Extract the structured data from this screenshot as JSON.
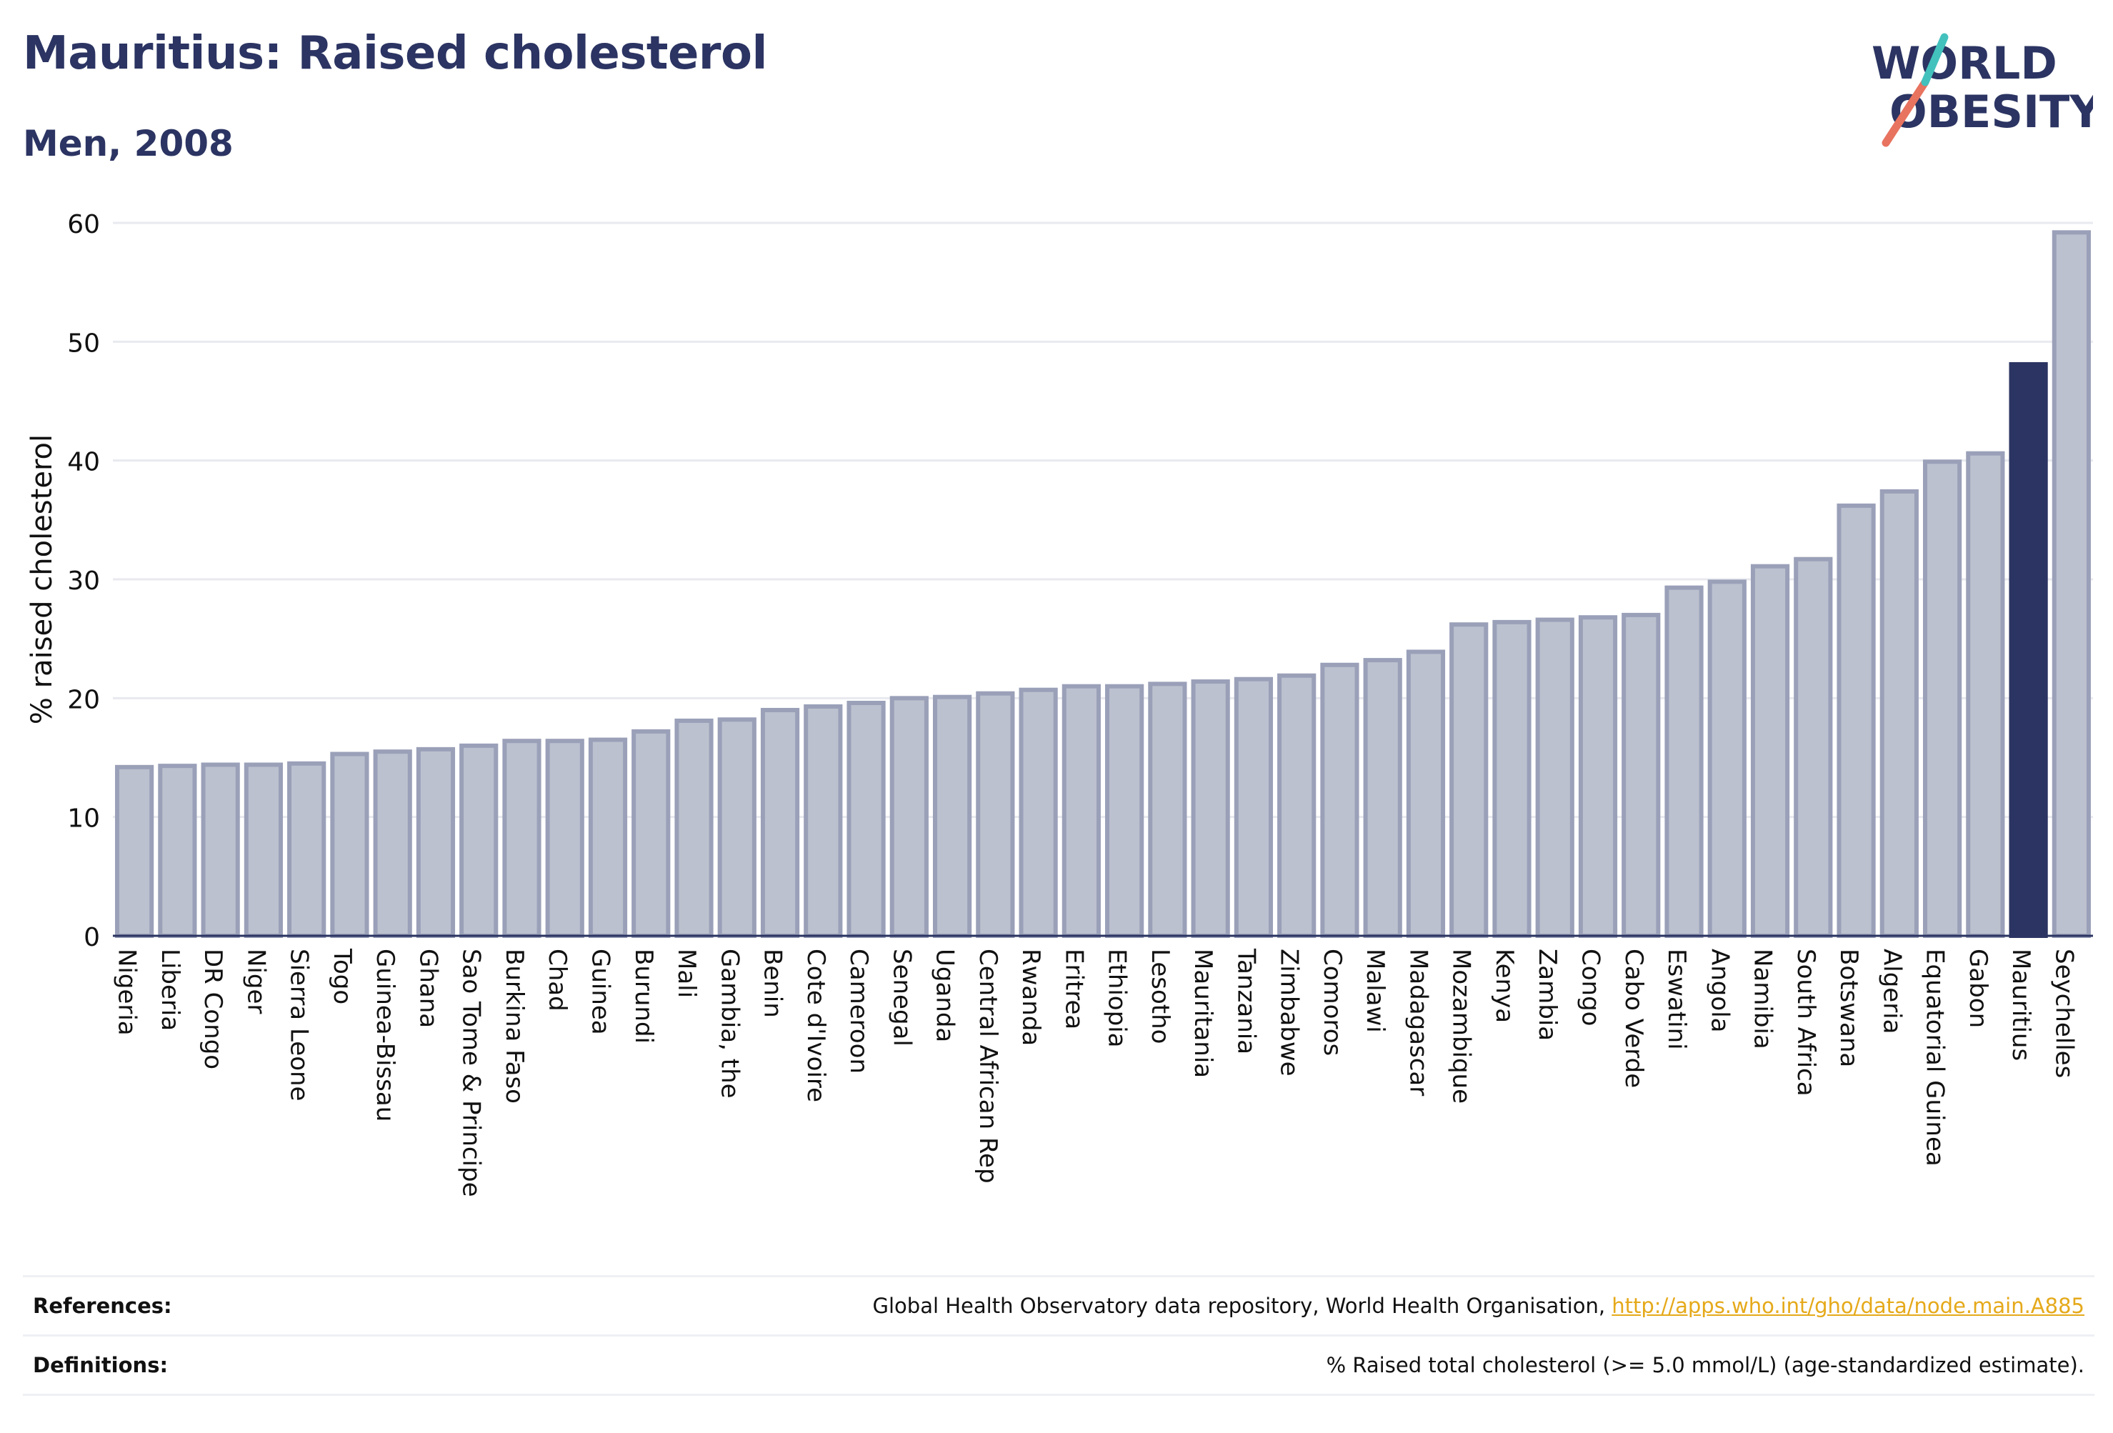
{
  "header": {
    "title": "Mauritius: Raised cholesterol",
    "subtitle": "Men, 2008"
  },
  "logo": {
    "line1": "WORLD",
    "line2": "OBESITY",
    "accent_colors": [
      "#e8735f",
      "#43c1bd"
    ]
  },
  "chart_data": {
    "type": "bar",
    "ylabel": "% raised cholesterol",
    "xlabel": "",
    "ylim": [
      0,
      60
    ],
    "yticks": [
      0,
      10,
      20,
      30,
      40,
      50,
      60
    ],
    "grid": true,
    "highlight": "Mauritius",
    "colors": {
      "bar": "#bcc1cf",
      "bar_edge": "#9aa0b8",
      "highlight": "#2b3462",
      "grid": "#e8eaef",
      "axis": "#2b3462"
    },
    "categories": [
      "Nigeria",
      "Liberia",
      "DR Congo",
      "Niger",
      "Sierra Leone",
      "Togo",
      "Guinea-Bissau",
      "Ghana",
      "Sao Tome & Principe",
      "Burkina Faso",
      "Chad",
      "Guinea",
      "Burundi",
      "Mali",
      "Gambia, the",
      "Benin",
      "Cote d'Ivoire",
      "Cameroon",
      "Senegal",
      "Uganda",
      "Central African Rep",
      "Rwanda",
      "Eritrea",
      "Ethiopia",
      "Lesotho",
      "Mauritania",
      "Tanzania",
      "Zimbabwe",
      "Comoros",
      "Malawi",
      "Madagascar",
      "Mozambique",
      "Kenya",
      "Zambia",
      "Congo",
      "Cabo Verde",
      "Eswatini",
      "Angola",
      "Namibia",
      "South Africa",
      "Botswana",
      "Algeria",
      "Equatorial Guinea",
      "Gabon",
      "Mauritius",
      "Seychelles"
    ],
    "values": [
      14.2,
      14.3,
      14.4,
      14.4,
      14.5,
      15.3,
      15.5,
      15.7,
      16.0,
      16.4,
      16.4,
      16.5,
      17.2,
      18.1,
      18.2,
      19.0,
      19.3,
      19.6,
      20.0,
      20.1,
      20.4,
      20.7,
      21.0,
      21.0,
      21.2,
      21.4,
      21.6,
      21.9,
      22.8,
      23.2,
      23.9,
      26.2,
      26.4,
      26.6,
      26.8,
      27.0,
      29.3,
      29.8,
      31.1,
      31.7,
      36.2,
      37.4,
      39.9,
      40.6,
      48.1,
      59.2
    ]
  },
  "footer": {
    "references_label": "References:",
    "references_text": "Global Health Observatory data repository, World Health Organisation, ",
    "references_link": "http://apps.who.int/gho/data/node.main.A885",
    "definitions_label": "Definitions:",
    "definitions_text": "% Raised total cholesterol (>= 5.0 mmol/L) (age-standardized estimate)."
  }
}
